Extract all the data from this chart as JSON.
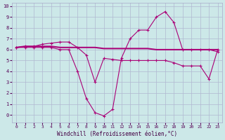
{
  "xlabel": "Windchill (Refroidissement éolien,°C)",
  "bg_color": "#cce8e8",
  "grid_color": "#b0b8d0",
  "line_color": "#aa0077",
  "xlim": [
    -0.5,
    23.5
  ],
  "ylim": [
    -0.7,
    10.3
  ],
  "xticks": [
    0,
    1,
    2,
    3,
    4,
    5,
    6,
    7,
    8,
    9,
    10,
    11,
    12,
    13,
    14,
    15,
    16,
    17,
    18,
    19,
    20,
    21,
    22,
    23
  ],
  "yticks": [
    0,
    1,
    2,
    3,
    4,
    5,
    6,
    7,
    8,
    9,
    10
  ],
  "line1_x": [
    0,
    1,
    2,
    3,
    4,
    5,
    6,
    7,
    8,
    9,
    10,
    11,
    12,
    13,
    14,
    15,
    16,
    17,
    18,
    19,
    20,
    21,
    22,
    23
  ],
  "line1_y": [
    6.2,
    6.3,
    6.3,
    6.3,
    6.3,
    6.2,
    6.2,
    6.2,
    6.2,
    6.2,
    6.1,
    6.1,
    6.1,
    6.1,
    6.1,
    6.1,
    6.0,
    6.0,
    6.0,
    6.0,
    6.0,
    6.0,
    6.0,
    6.0
  ],
  "line2_x": [
    0,
    1,
    2,
    3,
    4,
    5,
    6,
    7,
    8,
    9,
    10,
    11,
    12,
    13,
    14,
    15,
    16,
    17,
    18,
    19,
    20,
    21,
    22,
    23
  ],
  "line2_y": [
    6.2,
    6.3,
    6.3,
    6.5,
    6.6,
    6.7,
    6.7,
    6.2,
    5.5,
    3.0,
    5.2,
    5.1,
    5.0,
    5.0,
    5.0,
    5.0,
    5.0,
    5.0,
    4.8,
    4.5,
    4.5,
    4.5,
    3.3,
    6.0
  ],
  "line3_x": [
    0,
    1,
    2,
    3,
    4,
    5,
    6,
    7,
    8,
    9,
    10,
    11,
    12,
    13,
    14,
    15,
    16,
    17,
    18,
    19,
    20,
    21,
    22,
    23
  ],
  "line3_y": [
    6.2,
    6.2,
    6.2,
    6.2,
    6.2,
    6.0,
    6.0,
    4.0,
    1.5,
    0.2,
    -0.1,
    0.5,
    5.2,
    7.0,
    7.8,
    7.8,
    9.0,
    9.5,
    8.5,
    6.0,
    6.0,
    6.0,
    6.0,
    5.8
  ],
  "marker": "+"
}
